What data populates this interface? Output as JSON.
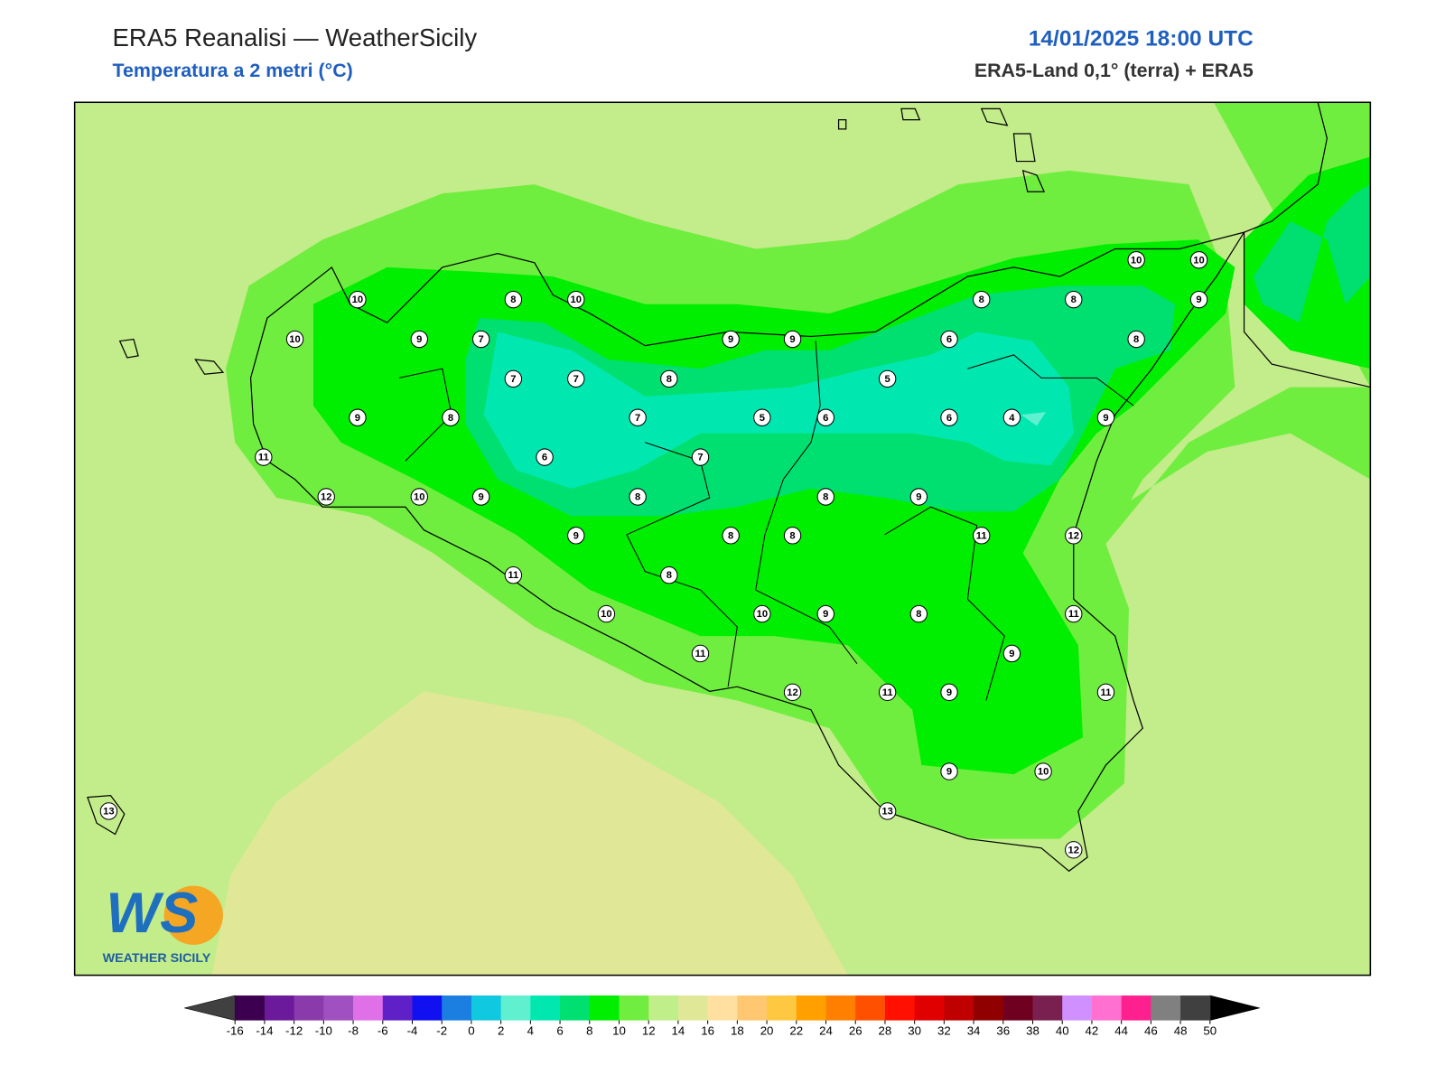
{
  "header": {
    "title": "ERA5 Reanalisi — WeatherSicily",
    "subtitle": "Temperatura a 2 metri (°C)",
    "datetime": "14/01/2025 18:00 UTC",
    "source": "ERA5-Land 0,1° (terra) + ERA5"
  },
  "logo": {
    "mark": "WS",
    "text": "WEATHER SICILY"
  },
  "stations": [
    10,
    8,
    10,
    10,
    9,
    7,
    9,
    9,
    6,
    8,
    8,
    10,
    10,
    9,
    8,
    7,
    7,
    8,
    5,
    9,
    8,
    7,
    5,
    6,
    6,
    4,
    9,
    11,
    6,
    7,
    12,
    10,
    9,
    8,
    8,
    9,
    9,
    8,
    8,
    11,
    12,
    11,
    8,
    10,
    10,
    9,
    8,
    11,
    11,
    9,
    12,
    11,
    9,
    11,
    9,
    10,
    13,
    13,
    12
  ],
  "colorbar": {
    "ticks": [
      -16,
      -14,
      -12,
      -10,
      -8,
      -6,
      -4,
      -2,
      0,
      2,
      4,
      6,
      8,
      10,
      12,
      14,
      16,
      18,
      20,
      22,
      24,
      26,
      28,
      30,
      32,
      34,
      36,
      38,
      40,
      42,
      44,
      46,
      48,
      50
    ],
    "colors": [
      "#3d0050",
      "#6a1a9a",
      "#8a3aaa",
      "#a050c0",
      "#e070e8",
      "#6020c8",
      "#1010f0",
      "#1a7fe0",
      "#10c8e0",
      "#60f0d0",
      "#00e8b0",
      "#00e070",
      "#00ee00",
      "#70ee40",
      "#c0ee88",
      "#e0e898",
      "#ffe0a0",
      "#ffc870",
      "#ffc840",
      "#ffa000",
      "#ff8000",
      "#ff5000",
      "#ff1000",
      "#e00000",
      "#c00000",
      "#900000",
      "#700020",
      "#7a2050",
      "#d090ff",
      "#ff70d0",
      "#ff2090",
      "#808080",
      "#404040"
    ],
    "under": "#404040",
    "over": "#000000"
  }
}
